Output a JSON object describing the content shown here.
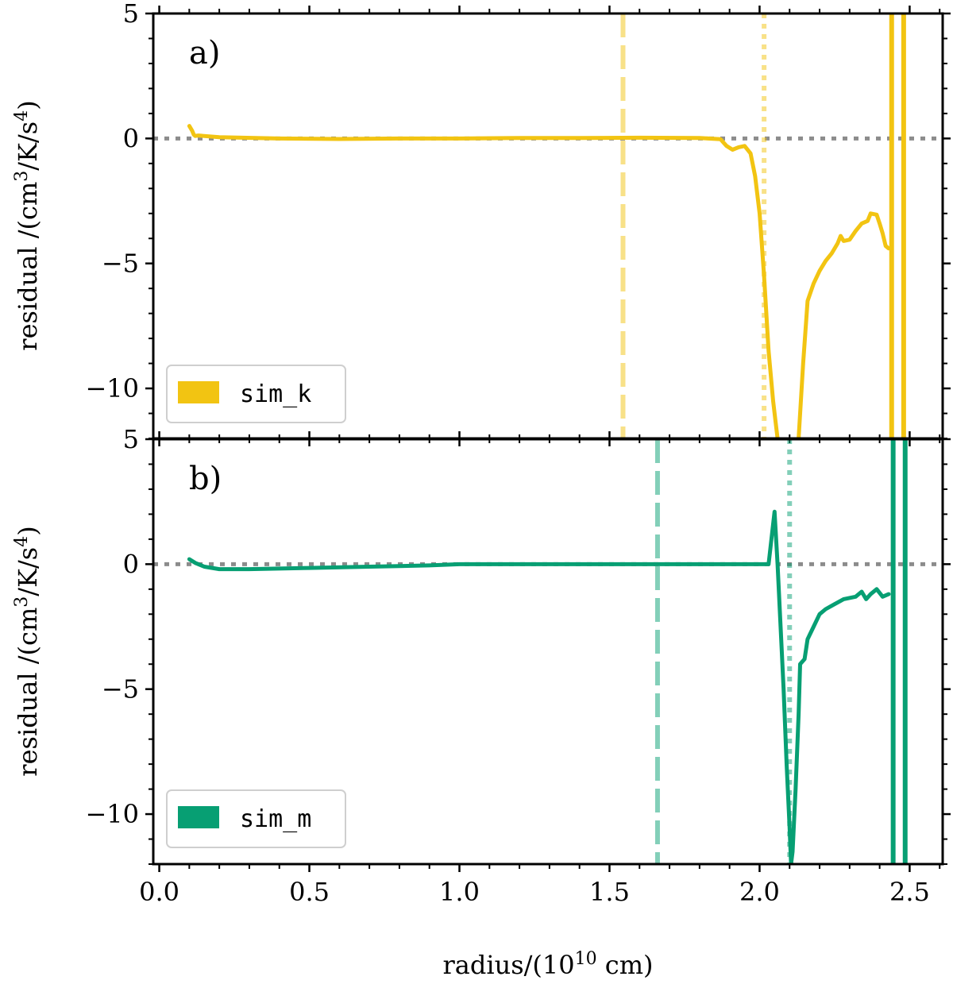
{
  "colors": {
    "sim_k": "#f2c412",
    "sim_m": "#079f73",
    "zero_line": "#8c8c8c",
    "axes": "#000000"
  },
  "chart_data": [
    {
      "type": "line",
      "panel_label": "a)",
      "xlabel_main": "radius/(10",
      "xlabel_sup": "10",
      "xlabel_tail": " cm)",
      "ylabel_parts": [
        "residual /(cm",
        "3",
        "/K/s",
        "4",
        ")"
      ],
      "xlim": [
        -0.02,
        2.61
      ],
      "ylim": [
        -12,
        5
      ],
      "yticks": [
        5,
        0,
        -5,
        -10
      ],
      "ytick_labels": [
        "5",
        "0",
        "−5",
        "−10"
      ],
      "legend": "sim_k",
      "zero_line": true,
      "vlines": [
        {
          "x": 1.545,
          "style": "dashed"
        },
        {
          "x": 2.015,
          "style": "dotted"
        },
        {
          "x": 2.44,
          "style": "solid"
        },
        {
          "x": 2.48,
          "style": "solid"
        }
      ],
      "series": [
        {
          "name": "sim_k",
          "x": [
            0.1,
            0.11,
            0.115,
            0.12,
            0.13,
            0.2,
            0.4,
            0.6,
            0.8,
            1.0,
            1.2,
            1.4,
            1.6,
            1.8,
            1.87,
            1.89,
            1.91,
            1.93,
            1.95,
            1.97,
            1.985,
            2.0,
            2.015,
            2.03,
            2.045,
            2.055,
            2.06
          ],
          "values": [
            0.5,
            0.3,
            0.15,
            0.1,
            0.12,
            0.05,
            0.0,
            -0.02,
            0.0,
            0.0,
            0.02,
            0.02,
            0.03,
            0.02,
            -0.03,
            -0.3,
            -0.45,
            -0.35,
            -0.3,
            -0.6,
            -1.5,
            -3.0,
            -5.5,
            -8.5,
            -10.5,
            -11.5,
            -12.0
          ]
        },
        {
          "name": "sim_k",
          "x": [
            2.13,
            2.145,
            2.16,
            2.18,
            2.2,
            2.22,
            2.24,
            2.26,
            2.27,
            2.28,
            2.3,
            2.32,
            2.34,
            2.36,
            2.37,
            2.39,
            2.4,
            2.41,
            2.42,
            2.43
          ],
          "values": [
            -12.0,
            -9.0,
            -6.5,
            -5.8,
            -5.3,
            -4.9,
            -4.6,
            -4.2,
            -3.9,
            -4.1,
            -4.05,
            -3.7,
            -3.4,
            -3.3,
            -3.0,
            -3.05,
            -3.4,
            -3.8,
            -4.3,
            -4.4
          ]
        }
      ]
    },
    {
      "type": "line",
      "panel_label": "b)",
      "xlim": [
        -0.02,
        2.61
      ],
      "ylim": [
        -12,
        5
      ],
      "yticks": [
        5,
        0,
        -5,
        -10
      ],
      "ytick_labels": [
        "5",
        "0",
        "−5",
        "−10"
      ],
      "xticks": [
        0.0,
        0.5,
        1.0,
        1.5,
        2.0,
        2.5
      ],
      "xtick_labels": [
        "0.0",
        "0.5",
        "1.0",
        "1.5",
        "2.0",
        "2.5"
      ],
      "legend": "sim_m",
      "zero_line": true,
      "vlines": [
        {
          "x": 1.66,
          "style": "dashed"
        },
        {
          "x": 2.1,
          "style": "dotted"
        },
        {
          "x": 2.445,
          "style": "solid"
        },
        {
          "x": 2.485,
          "style": "solid"
        }
      ],
      "series": [
        {
          "name": "sim_m",
          "x": [
            0.1,
            0.12,
            0.15,
            0.2,
            0.3,
            0.5,
            0.7,
            0.9,
            1.0,
            1.2,
            1.4,
            1.6,
            1.8,
            2.0,
            2.03,
            2.045,
            2.05,
            2.06,
            2.07,
            2.08,
            2.09,
            2.1,
            2.105,
            2.11,
            2.12,
            2.13,
            2.135,
            2.15,
            2.16,
            2.18,
            2.2,
            2.22,
            2.25,
            2.28,
            2.32,
            2.34,
            2.355,
            2.37,
            2.39,
            2.41,
            2.43
          ],
          "values": [
            0.2,
            0.05,
            -0.1,
            -0.2,
            -0.2,
            -0.15,
            -0.1,
            -0.05,
            0.0,
            0.0,
            0.0,
            0.0,
            0.0,
            0.0,
            0.0,
            1.6,
            2.1,
            0.0,
            -2.5,
            -5.0,
            -8.0,
            -10.5,
            -12.0,
            -11.5,
            -9.0,
            -6.0,
            -4.0,
            -3.8,
            -3.0,
            -2.5,
            -2.0,
            -1.8,
            -1.6,
            -1.4,
            -1.3,
            -1.1,
            -1.4,
            -1.2,
            -1.0,
            -1.3,
            -1.2
          ]
        }
      ]
    }
  ]
}
